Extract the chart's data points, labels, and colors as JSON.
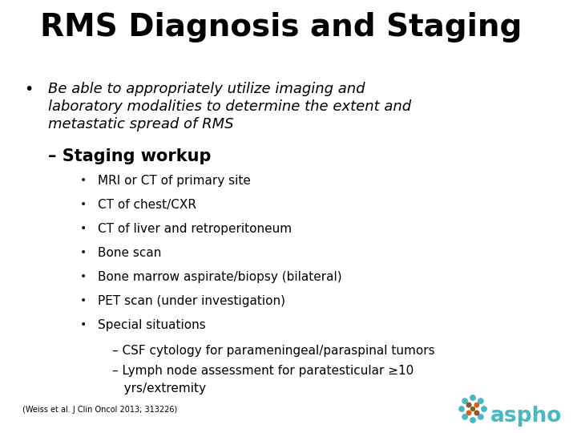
{
  "title": "RMS Diagnosis and Staging",
  "background_color": "#ffffff",
  "title_fontsize": 28,
  "bullet1_line1": "Be able to appropriately utilize imaging and",
  "bullet1_line2": "laboratory modalities to determine the extent and",
  "bullet1_line3": "metastatic spread of RMS",
  "subheading": "– Staging workup",
  "sub_items": [
    "MRI or CT of primary site",
    "CT of chest/CXR",
    "CT of liver and retroperitoneum",
    "Bone scan",
    "Bone marrow aspirate/biopsy (bilateral)",
    "PET scan (under investigation)",
    "Special situations"
  ],
  "sub_sub_item1": "– CSF cytology for parameningeal/paraspinal tumors",
  "sub_sub_item2": "– Lymph node assessment for paratesticular ≥10",
  "sub_sub_item2b": "   yrs/extremity",
  "footnote": "(Weiss et al. J Clin Oncol 2013; 313226)",
  "aspho_text": "aspho",
  "aspho_color": "#4ab8c1",
  "dot_teal": "#4ab8c1",
  "dot_orange": "#d4622a",
  "dot_brown": "#8b5a2b",
  "text_color": "#000000"
}
